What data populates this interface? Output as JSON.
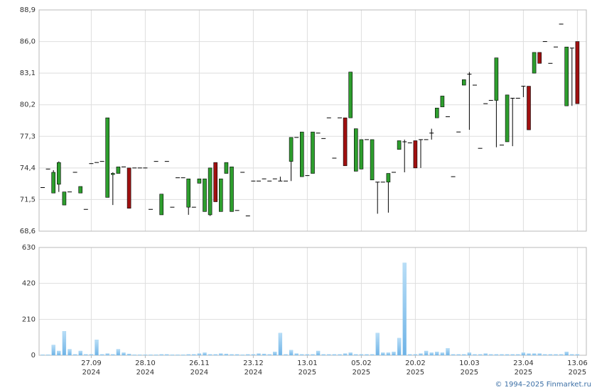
{
  "chart_data": [
    {
      "type": "candlestick",
      "xticks": [
        {
          "value": 9,
          "label": "27.09",
          "sublabel": "2024"
        },
        {
          "value": 19,
          "label": "28.10",
          "sublabel": "2024"
        },
        {
          "value": 29,
          "label": "26.11",
          "sublabel": "2024"
        },
        {
          "value": 39,
          "label": "23.12",
          "sublabel": "2024"
        },
        {
          "value": 49,
          "label": "13.01",
          "sublabel": "2025"
        },
        {
          "value": 59,
          "label": "05.02",
          "sublabel": "2025"
        },
        {
          "value": 69,
          "label": "20.02",
          "sublabel": "2025"
        },
        {
          "value": 79,
          "label": "10.03",
          "sublabel": "2025"
        },
        {
          "value": 89,
          "label": "23.04",
          "sublabel": "2025"
        },
        {
          "value": 99,
          "label": "13.06",
          "sublabel": "2025"
        }
      ],
      "open": [
        72.6,
        74.3,
        72.1,
        72.9,
        71.0,
        72.2,
        74.0,
        72.1,
        70.6,
        74.8,
        74.9,
        75.0,
        71.7,
        73.8,
        73.9,
        74.5,
        74.4,
        74.4,
        74.4,
        74.4,
        70.6,
        75.0,
        70.1,
        75.0,
        70.8,
        73.5,
        73.5,
        70.8,
        70.8,
        73.0,
        70.4,
        70.1,
        74.9,
        70.4,
        73.9,
        70.4,
        70.5,
        74.0,
        70.0,
        73.2,
        73.2,
        73.4,
        73.2,
        73.4,
        73.2,
        73.2,
        75.0,
        77.2,
        73.6,
        73.7,
        73.9,
        77.6,
        77.1,
        79.0,
        75.3,
        79.0,
        79.0,
        79.0,
        74.1,
        74.3,
        77.0,
        73.3,
        73.1,
        73.1,
        73.1,
        74.0,
        76.1,
        76.8,
        76.7,
        76.9,
        77.0,
        77.0,
        77.6,
        79.0,
        80.0,
        79.1,
        73.6,
        77.7,
        82.0,
        83.0,
        82.0,
        76.2,
        80.3,
        80.6,
        80.6,
        76.5,
        76.8,
        80.8,
        80.8,
        81.9,
        81.9,
        83.1,
        85.0,
        86.0,
        84.0,
        85.5,
        87.6,
        80.1,
        85.4,
        86.0
      ],
      "high": [
        72.6,
        74.3,
        74.2,
        75.0,
        72.2,
        72.2,
        74.0,
        72.7,
        70.6,
        74.8,
        74.9,
        75.0,
        79.0,
        74.0,
        74.5,
        74.5,
        74.4,
        74.4,
        74.4,
        74.4,
        70.6,
        75.0,
        72.0,
        75.0,
        70.8,
        73.5,
        73.5,
        73.4,
        70.8,
        73.4,
        73.4,
        74.4,
        74.9,
        73.4,
        74.9,
        74.5,
        70.5,
        74.0,
        70.0,
        73.2,
        73.2,
        73.4,
        73.2,
        73.4,
        73.6,
        73.2,
        77.2,
        77.2,
        77.7,
        73.7,
        77.7,
        77.6,
        77.1,
        79.0,
        75.3,
        79.0,
        79.0,
        83.2,
        78.0,
        77.0,
        77.0,
        77.0,
        73.1,
        73.1,
        73.9,
        74.0,
        76.9,
        77.0,
        76.7,
        76.9,
        77.0,
        77.0,
        78.0,
        79.9,
        81.0,
        79.1,
        73.6,
        77.7,
        82.5,
        83.2,
        82.0,
        76.2,
        80.3,
        80.6,
        84.5,
        76.5,
        81.1,
        80.8,
        80.8,
        81.9,
        81.9,
        85.0,
        85.0,
        86.0,
        84.0,
        85.5,
        87.6,
        85.5,
        85.4,
        86.0
      ],
      "low": [
        72.6,
        74.3,
        72.1,
        72.2,
        71.0,
        72.2,
        74.0,
        72.1,
        70.6,
        74.8,
        74.9,
        75.0,
        71.7,
        71.0,
        73.9,
        74.5,
        70.7,
        74.4,
        74.4,
        74.4,
        70.6,
        75.0,
        70.1,
        75.0,
        70.8,
        73.5,
        73.5,
        70.1,
        70.8,
        73.0,
        70.4,
        70.0,
        71.3,
        70.4,
        73.9,
        70.4,
        70.5,
        74.0,
        70.0,
        73.2,
        73.2,
        73.4,
        73.2,
        73.4,
        73.2,
        73.2,
        73.2,
        77.2,
        73.6,
        73.7,
        73.9,
        77.6,
        77.1,
        79.0,
        75.3,
        79.0,
        74.6,
        79.0,
        74.1,
        74.3,
        77.0,
        73.3,
        70.2,
        73.1,
        70.3,
        74.0,
        76.1,
        74.0,
        76.7,
        74.4,
        74.4,
        77.0,
        77.0,
        79.0,
        80.0,
        79.1,
        73.6,
        77.7,
        82.0,
        77.9,
        82.0,
        76.2,
        80.3,
        80.6,
        76.3,
        76.5,
        76.8,
        76.4,
        80.8,
        80.9,
        77.9,
        83.1,
        84.0,
        86.0,
        84.0,
        85.5,
        87.6,
        80.1,
        80.1,
        80.3
      ],
      "close": [
        72.6,
        74.3,
        74.0,
        74.9,
        72.2,
        72.2,
        74.0,
        72.7,
        70.6,
        74.8,
        74.9,
        75.0,
        79.0,
        73.9,
        74.5,
        74.5,
        70.7,
        74.4,
        74.4,
        74.4,
        70.6,
        75.0,
        72.0,
        75.0,
        70.8,
        73.5,
        73.5,
        73.4,
        70.8,
        73.4,
        73.4,
        74.4,
        71.3,
        73.4,
        74.9,
        74.5,
        70.5,
        74.0,
        70.0,
        73.2,
        73.2,
        73.4,
        73.2,
        73.4,
        73.2,
        73.2,
        77.2,
        77.2,
        77.7,
        73.7,
        77.7,
        77.6,
        77.1,
        79.0,
        75.3,
        79.0,
        74.6,
        83.2,
        78.0,
        77.0,
        77.0,
        77.0,
        73.1,
        73.1,
        73.9,
        74.0,
        76.9,
        76.8,
        76.7,
        74.4,
        77.0,
        77.0,
        77.6,
        79.9,
        81.0,
        79.1,
        73.6,
        77.7,
        82.5,
        83.0,
        82.0,
        76.2,
        80.3,
        80.6,
        84.5,
        76.5,
        81.1,
        80.8,
        80.8,
        81.9,
        77.9,
        85.0,
        84.0,
        86.0,
        84.0,
        85.5,
        87.6,
        85.5,
        85.4,
        80.3
      ],
      "up_color": "#2e9e2e",
      "down_color": "#a01010",
      "flat_color": "#000000",
      "ylim": [
        68.6,
        88.9
      ],
      "yticks": [
        {
          "value": 68.6,
          "label": "68,6"
        },
        {
          "value": 71.5,
          "label": "71,5"
        },
        {
          "value": 74.4,
          "label": "74,4"
        },
        {
          "value": 77.3,
          "label": "77,3"
        },
        {
          "value": 80.2,
          "label": "80,2"
        },
        {
          "value": 83.1,
          "label": "83,1"
        },
        {
          "value": 86.0,
          "label": "86,0"
        },
        {
          "value": 88.9,
          "label": "88,9"
        }
      ],
      "grid": true
    },
    {
      "type": "bar",
      "values": [
        3,
        3,
        60,
        25,
        140,
        35,
        5,
        25,
        5,
        5,
        90,
        5,
        10,
        5,
        35,
        15,
        8,
        3,
        3,
        3,
        3,
        3,
        5,
        5,
        3,
        3,
        3,
        5,
        5,
        10,
        15,
        5,
        5,
        10,
        8,
        5,
        5,
        3,
        5,
        5,
        10,
        8,
        5,
        20,
        130,
        5,
        30,
        10,
        5,
        5,
        5,
        25,
        5,
        5,
        5,
        5,
        10,
        15,
        5,
        5,
        5,
        5,
        130,
        15,
        15,
        20,
        100,
        540,
        5,
        5,
        10,
        25,
        15,
        20,
        15,
        40,
        5,
        5,
        5,
        15,
        5,
        5,
        10,
        5,
        5,
        5,
        5,
        5,
        5,
        15,
        10,
        10,
        10,
        5,
        5,
        5,
        5,
        20,
        5,
        5
      ],
      "color": "#8cc8ef",
      "ylim": [
        0,
        630
      ],
      "yticks": [
        0,
        210,
        420,
        630
      ],
      "grid": true
    }
  ],
  "footer": "© 1994–2025 Finmarket.ru"
}
